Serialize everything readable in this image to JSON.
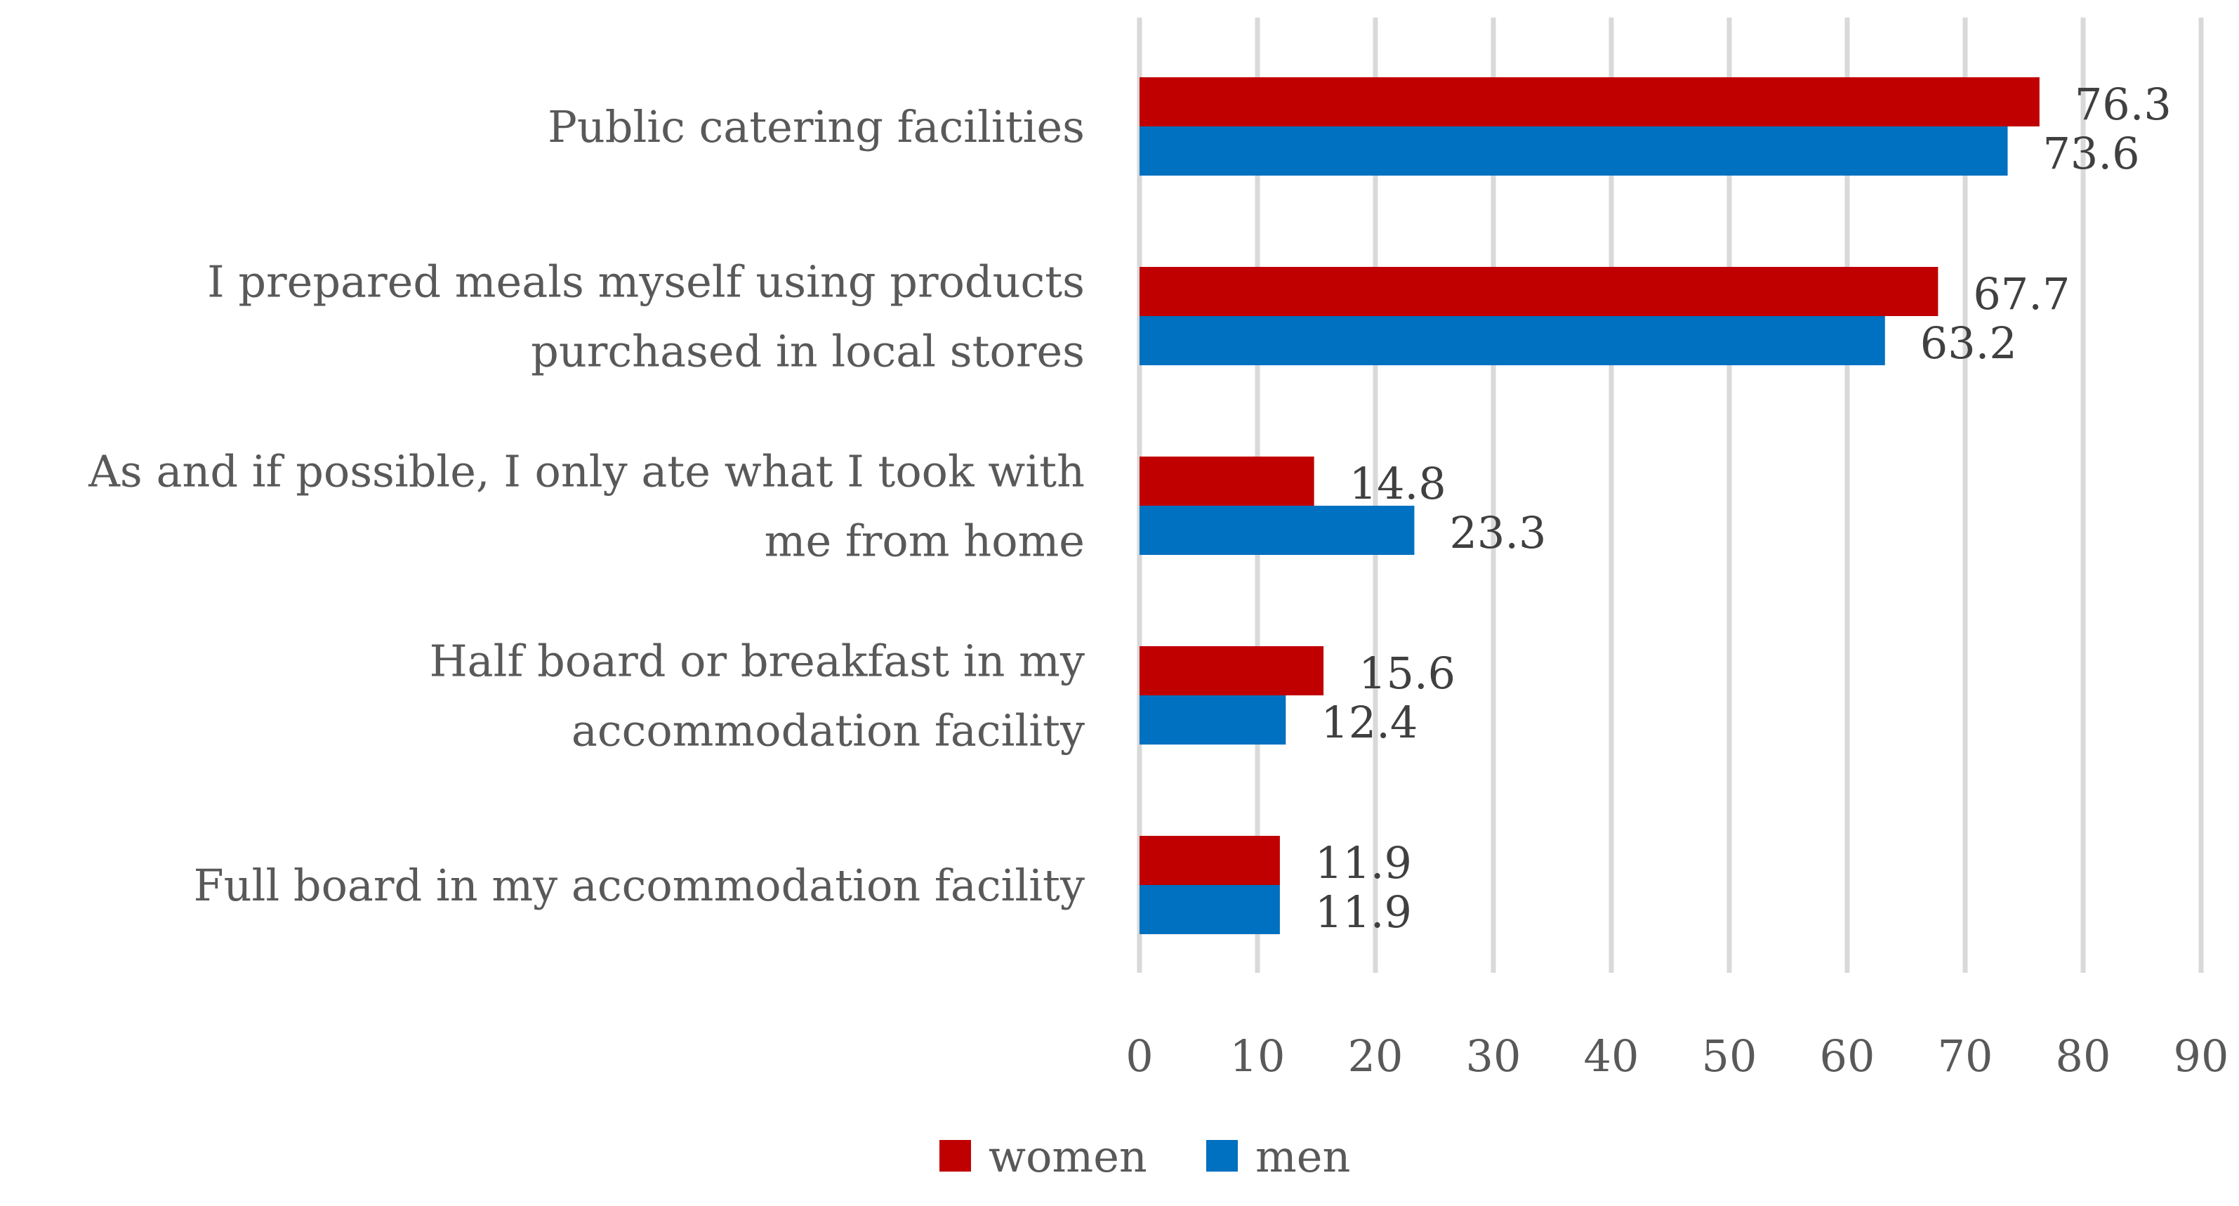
{
  "chart_data": {
    "type": "bar",
    "orientation": "horizontal",
    "title": "",
    "xlabel": "",
    "ylabel": "",
    "xlim": [
      0,
      90
    ],
    "ticks": [
      "0",
      "10",
      "20",
      "30",
      "40",
      "50",
      "60",
      "70",
      "80",
      "90"
    ],
    "grid": true,
    "legend_position": "bottom",
    "categories": [
      [
        "Public catering facilities"
      ],
      [
        "I prepared meals myself using products",
        "purchased in local stores"
      ],
      [
        "As and if possible, I only ate what I took with",
        "me from home"
      ],
      [
        "Half board or breakfast in my",
        "accommodation facility"
      ],
      [
        "Full board in my accommodation facility"
      ]
    ],
    "series": [
      {
        "name": "women",
        "color": "#c00000",
        "values": [
          76.3,
          67.7,
          14.8,
          15.6,
          11.9
        ]
      },
      {
        "name": "men",
        "color": "#0070c0",
        "values": [
          73.6,
          63.2,
          23.3,
          12.4,
          11.9
        ]
      }
    ]
  }
}
